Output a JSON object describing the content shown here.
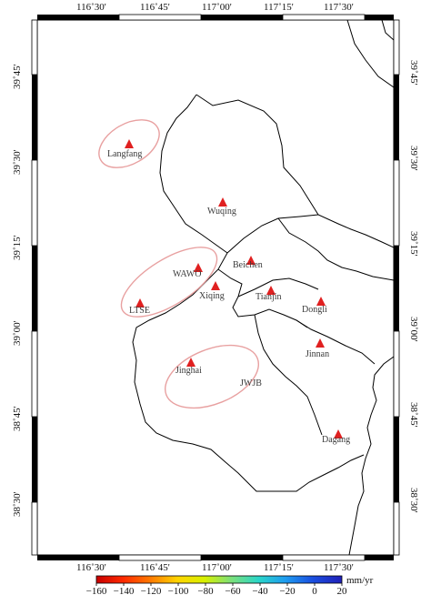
{
  "map": {
    "lon_ticks": [
      "116˚30'",
      "116˚45'",
      "117˚00'",
      "117˚15'",
      "117˚30'"
    ],
    "lat_ticks": [
      "39˚45'",
      "39˚30'",
      "39˚15'",
      "39˚00'",
      "38˚45'",
      "38˚30'"
    ],
    "colorbar": {
      "unit": "mm/yr",
      "ticks": [
        "−160",
        "−140",
        "−120",
        "−100",
        "−80",
        "−60",
        "−40",
        "−20",
        "0",
        "20"
      ],
      "range": [
        -160,
        20
      ],
      "colors": [
        "#c80000",
        "#ff2a00",
        "#ff7a00",
        "#ffd400",
        "#d8f000",
        "#7be07b",
        "#2ad6c8",
        "#1e9cf0",
        "#1a4fe0",
        "#2020b8"
      ]
    },
    "cities": [
      {
        "name": "Langfang"
      },
      {
        "name": "Wuqing"
      },
      {
        "name": "Beichen"
      },
      {
        "name": "WAWO"
      },
      {
        "name": "Xiqing"
      },
      {
        "name": "Tianjin"
      },
      {
        "name": "Dongli"
      },
      {
        "name": "LTSE"
      },
      {
        "name": "Jinnan"
      },
      {
        "name": "Jinghai"
      },
      {
        "name": "JWJB"
      },
      {
        "name": "Dagang"
      }
    ],
    "colors": {
      "city_marker": "#e02020",
      "ellipse": "#e8a0a0",
      "boundary": "#000000",
      "frame": "#000000"
    }
  }
}
